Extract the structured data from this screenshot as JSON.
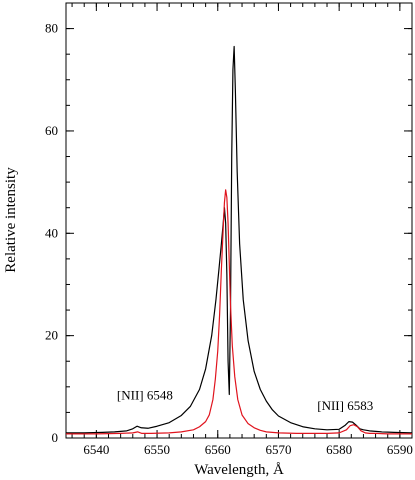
{
  "chart_data": {
    "type": "line",
    "title": "",
    "xlabel": "Wavelength, Å",
    "ylabel": "Relative intensity",
    "xlim": [
      6535,
      6592
    ],
    "ylim": [
      0,
      85
    ],
    "x_major_ticks": [
      6540,
      6550,
      6560,
      6570,
      6580,
      6590
    ],
    "y_major_ticks": [
      0,
      20,
      40,
      60,
      80
    ],
    "x_minor_step": 2,
    "y_minor_step": 5,
    "grid": false,
    "legend": "none",
    "annotations": [
      {
        "text": "[NII] 6548",
        "x": 6548.0,
        "y": 7.5
      },
      {
        "text": "[NII] 6583",
        "x": 6581.0,
        "y": 5.5
      }
    ],
    "series": [
      {
        "color": "#000000",
        "x": [
          6535,
          6538,
          6541,
          6543,
          6545,
          6546,
          6546.7,
          6547.4,
          6548.5,
          6550,
          6552,
          6554,
          6555.5,
          6557,
          6558,
          6559,
          6559.7,
          6560.2,
          6560.6,
          6560.9,
          6561.1,
          6561.3,
          6561.5,
          6561.7,
          6561.9,
          6562.1,
          6562.3,
          6562.5,
          6562.7,
          6562.9,
          6563.2,
          6563.6,
          6564.2,
          6565,
          6566,
          6567,
          6568,
          6569,
          6570,
          6572,
          6574,
          6576,
          6578,
          6580,
          6581,
          6581.6,
          6582.2,
          6582.8,
          6583.4,
          6584,
          6585,
          6586,
          6587,
          6589,
          6592
        ],
        "y": [
          1.0,
          1.0,
          1.1,
          1.2,
          1.4,
          1.8,
          2.3,
          2.0,
          1.9,
          2.3,
          3.0,
          4.4,
          6.2,
          9.5,
          13.5,
          20.0,
          27.0,
          33.0,
          38.0,
          42.0,
          45.0,
          42.0,
          32.0,
          15.0,
          8.5,
          25.0,
          55.0,
          72.0,
          76.5,
          68.0,
          52.0,
          38.0,
          27.0,
          19.0,
          13.0,
          9.5,
          7.2,
          5.5,
          4.3,
          3.0,
          2.2,
          1.8,
          1.6,
          1.7,
          2.5,
          3.2,
          3.1,
          2.5,
          1.8,
          1.6,
          1.4,
          1.3,
          1.2,
          1.1,
          1.0
        ]
      },
      {
        "color": "#e0141e",
        "x": [
          6535,
          6540,
          6544,
          6546,
          6546.8,
          6547.5,
          6549,
          6552,
          6554,
          6556,
          6557,
          6558,
          6558.6,
          6559.2,
          6559.6,
          6560.0,
          6560.3,
          6560.6,
          6560.9,
          6561.1,
          6561.3,
          6561.5,
          6561.7,
          6561.9,
          6562.1,
          6562.4,
          6562.8,
          6563.3,
          6564,
          6565,
          6566,
          6567,
          6568,
          6570,
          6573,
          6576,
          6578,
          6580,
          6581.2,
          6581.8,
          6582.4,
          6583,
          6583.6,
          6584.3,
          6585,
          6586,
          6588,
          6592
        ],
        "y": [
          0.8,
          0.8,
          0.9,
          1.0,
          1.2,
          0.9,
          0.9,
          1.0,
          1.2,
          1.6,
          2.2,
          3.2,
          4.5,
          7.5,
          11.5,
          17.0,
          24.0,
          33.0,
          41.0,
          46.0,
          48.5,
          47.0,
          42.0,
          34.0,
          26.0,
          18.0,
          12.0,
          7.5,
          4.5,
          2.8,
          2.0,
          1.5,
          1.2,
          1.0,
          0.9,
          0.9,
          0.9,
          1.0,
          1.6,
          2.4,
          2.6,
          2.2,
          1.4,
          1.0,
          0.9,
          0.9,
          0.8,
          0.8
        ]
      }
    ]
  }
}
